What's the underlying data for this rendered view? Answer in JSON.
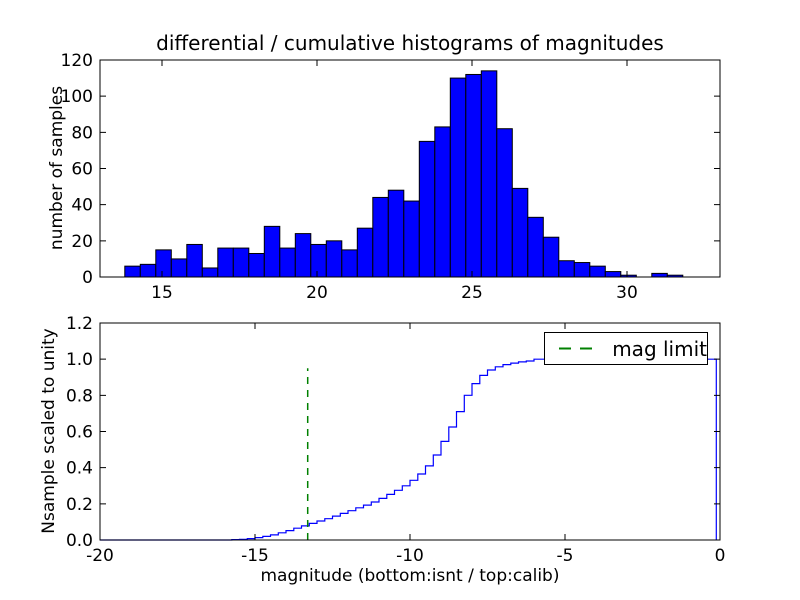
{
  "title": "differential / cumulative histograms of magnitudes",
  "axis_labels": {
    "top_y": "number of samples",
    "bottom_y": "Nsample scaled to unity",
    "bottom_x": "magnitude (bottom:isnt / top:calib)"
  },
  "legend": {
    "label": "mag limit"
  },
  "colors": {
    "hist_fill": "#0000ff",
    "hist_edge": "#000000",
    "curve": "#0000ff",
    "mag_limit_line": "#008000",
    "axes": "#000000",
    "background": "#ffffff"
  },
  "chart_data": [
    {
      "type": "bar",
      "subplot": "top",
      "title": "differential / cumulative histograms of magnitudes",
      "xlabel": "",
      "ylabel": "number of samples",
      "xlim": [
        13,
        33
      ],
      "ylim": [
        0,
        120
      ],
      "xticks": [
        15,
        20,
        25,
        30
      ],
      "yticks": [
        0,
        20,
        40,
        60,
        80,
        100,
        120
      ],
      "bin_start": 13.8,
      "bin_width": 0.5,
      "values": [
        6,
        7,
        15,
        10,
        18,
        5,
        16,
        16,
        13,
        28,
        16,
        24,
        18,
        20,
        15,
        27,
        44,
        48,
        42,
        75,
        83,
        110,
        112,
        114,
        82,
        49,
        33,
        22,
        9,
        8,
        6,
        3,
        1,
        0,
        2,
        1,
        0,
        0,
        0,
        0
      ]
    },
    {
      "type": "line",
      "subplot": "bottom",
      "style": "cumulative-step",
      "xlabel": "magnitude (bottom:isnt / top:calib)",
      "ylabel": "Nsample scaled to unity",
      "xlim": [
        -20,
        0
      ],
      "ylim": [
        0,
        1.2
      ],
      "xticks": [
        -20,
        -15,
        -10,
        -5,
        0
      ],
      "yticks": [
        0.0,
        0.2,
        0.4,
        0.6,
        0.8,
        1.0,
        1.2
      ],
      "steps": [
        [
          -15.75,
          0.002
        ],
        [
          -15.5,
          0.004
        ],
        [
          -15.25,
          0.008
        ],
        [
          -15.0,
          0.013
        ],
        [
          -14.75,
          0.02
        ],
        [
          -14.5,
          0.028
        ],
        [
          -14.25,
          0.04
        ],
        [
          -14.0,
          0.052
        ],
        [
          -13.75,
          0.065
        ],
        [
          -13.5,
          0.078
        ],
        [
          -13.25,
          0.092
        ],
        [
          -13.0,
          0.105
        ],
        [
          -12.75,
          0.118
        ],
        [
          -12.5,
          0.132
        ],
        [
          -12.25,
          0.147
        ],
        [
          -12.0,
          0.162
        ],
        [
          -11.75,
          0.178
        ],
        [
          -11.5,
          0.193
        ],
        [
          -11.25,
          0.21
        ],
        [
          -11.0,
          0.23
        ],
        [
          -10.75,
          0.252
        ],
        [
          -10.5,
          0.275
        ],
        [
          -10.25,
          0.3
        ],
        [
          -10.0,
          0.33
        ],
        [
          -9.75,
          0.365
        ],
        [
          -9.5,
          0.41
        ],
        [
          -9.25,
          0.47
        ],
        [
          -9.0,
          0.545
        ],
        [
          -8.75,
          0.625
        ],
        [
          -8.5,
          0.71
        ],
        [
          -8.25,
          0.8
        ],
        [
          -8.0,
          0.865
        ],
        [
          -7.75,
          0.91
        ],
        [
          -7.5,
          0.94
        ],
        [
          -7.25,
          0.958
        ],
        [
          -7.0,
          0.97
        ],
        [
          -6.75,
          0.978
        ],
        [
          -6.5,
          0.985
        ],
        [
          -6.25,
          0.99
        ],
        [
          -6.0,
          1.0
        ]
      ],
      "plateau_end": -0.12,
      "mag_limit": {
        "x": -13.3,
        "y_top": 0.95,
        "label": "mag limit"
      },
      "legend_position": "upper right"
    }
  ]
}
